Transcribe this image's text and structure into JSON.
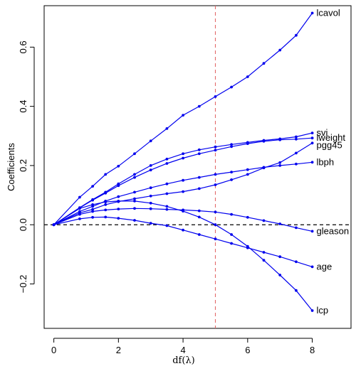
{
  "chart_data": {
    "type": "line",
    "title": "",
    "xlabel": "df(λ)",
    "ylabel": "Coefficients",
    "xlim": [
      -0.3,
      9.2
    ],
    "ylim": [
      -0.35,
      0.74
    ],
    "xticks": [
      0,
      2,
      4,
      6,
      8
    ],
    "xtick_labels": [
      "0",
      "2",
      "4",
      "6",
      "8"
    ],
    "yticks": [
      -0.2,
      0.0,
      0.2,
      0.4,
      0.6
    ],
    "ytick_labels": [
      "−0.2",
      "0.0",
      "0.2",
      "0.4",
      "0.6"
    ],
    "reference_hline": 0,
    "reference_vline": 5,
    "line_color": "#0000ee",
    "hline_color": "#000000",
    "vline_color": "#e06060",
    "grid": false,
    "legend": "labels at line ends (right)",
    "series": [
      {
        "name": "lcavol",
        "points": [
          [
            0,
            0
          ],
          [
            0.8,
            0.093
          ],
          [
            1.2,
            0.13
          ],
          [
            1.6,
            0.17
          ],
          [
            2,
            0.198
          ],
          [
            2.5,
            0.24
          ],
          [
            3,
            0.283
          ],
          [
            3.5,
            0.325
          ],
          [
            4,
            0.37
          ],
          [
            4.5,
            0.4
          ],
          [
            5,
            0.433
          ],
          [
            5.5,
            0.465
          ],
          [
            6,
            0.5
          ],
          [
            6.5,
            0.545
          ],
          [
            7,
            0.59
          ],
          [
            7.5,
            0.64
          ],
          [
            8,
            0.715
          ]
        ]
      },
      {
        "name": "svi",
        "points": [
          [
            0,
            0
          ],
          [
            0.8,
            0.058
          ],
          [
            1.2,
            0.085
          ],
          [
            1.6,
            0.11
          ],
          [
            2,
            0.138
          ],
          [
            2.5,
            0.17
          ],
          [
            3,
            0.2
          ],
          [
            3.5,
            0.222
          ],
          [
            4,
            0.24
          ],
          [
            4.5,
            0.253
          ],
          [
            5,
            0.263
          ],
          [
            5.5,
            0.271
          ],
          [
            6,
            0.278
          ],
          [
            6.5,
            0.285
          ],
          [
            7,
            0.29
          ],
          [
            7.5,
            0.297
          ],
          [
            8,
            0.31
          ]
        ]
      },
      {
        "name": "lweight",
        "points": [
          [
            0,
            0
          ],
          [
            0.8,
            0.057
          ],
          [
            1.2,
            0.083
          ],
          [
            1.6,
            0.107
          ],
          [
            2,
            0.132
          ],
          [
            2.5,
            0.16
          ],
          [
            3,
            0.185
          ],
          [
            3.5,
            0.207
          ],
          [
            4,
            0.225
          ],
          [
            4.5,
            0.24
          ],
          [
            5,
            0.252
          ],
          [
            5.5,
            0.264
          ],
          [
            6,
            0.274
          ],
          [
            6.5,
            0.282
          ],
          [
            7,
            0.287
          ],
          [
            7.5,
            0.289
          ],
          [
            8,
            0.293
          ]
        ]
      },
      {
        "name": "pgg45",
        "points": [
          [
            0,
            0
          ],
          [
            0.8,
            0.04
          ],
          [
            1.2,
            0.052
          ],
          [
            1.6,
            0.068
          ],
          [
            2,
            0.078
          ],
          [
            2.5,
            0.088
          ],
          [
            3,
            0.097
          ],
          [
            3.5,
            0.105
          ],
          [
            4,
            0.112
          ],
          [
            4.5,
            0.122
          ],
          [
            5,
            0.135
          ],
          [
            5.5,
            0.152
          ],
          [
            6,
            0.17
          ],
          [
            6.5,
            0.192
          ],
          [
            7,
            0.21
          ],
          [
            7.5,
            0.242
          ],
          [
            8,
            0.276
          ]
        ]
      },
      {
        "name": "lbph",
        "points": [
          [
            0,
            0
          ],
          [
            0.8,
            0.045
          ],
          [
            1.2,
            0.062
          ],
          [
            1.6,
            0.08
          ],
          [
            2,
            0.095
          ],
          [
            2.5,
            0.11
          ],
          [
            3,
            0.125
          ],
          [
            3.5,
            0.138
          ],
          [
            4,
            0.15
          ],
          [
            4.5,
            0.16
          ],
          [
            5,
            0.17
          ],
          [
            5.5,
            0.178
          ],
          [
            6,
            0.186
          ],
          [
            6.5,
            0.194
          ],
          [
            7,
            0.2
          ],
          [
            7.5,
            0.205
          ],
          [
            8,
            0.211
          ]
        ]
      },
      {
        "name": "gleason",
        "points": [
          [
            0,
            0
          ],
          [
            0.8,
            0.035
          ],
          [
            1.2,
            0.045
          ],
          [
            1.6,
            0.05
          ],
          [
            2,
            0.053
          ],
          [
            2.5,
            0.055
          ],
          [
            3,
            0.054
          ],
          [
            3.5,
            0.052
          ],
          [
            4,
            0.05
          ],
          [
            4.5,
            0.047
          ],
          [
            5,
            0.043
          ],
          [
            5.5,
            0.035
          ],
          [
            6,
            0.025
          ],
          [
            6.5,
            0.014
          ],
          [
            7,
            0.003
          ],
          [
            7.5,
            -0.01
          ],
          [
            8,
            -0.022
          ]
        ]
      },
      {
        "name": "age",
        "points": [
          [
            0,
            0
          ],
          [
            0.8,
            0.02
          ],
          [
            1.2,
            0.025
          ],
          [
            1.6,
            0.026
          ],
          [
            2,
            0.022
          ],
          [
            2.5,
            0.015
          ],
          [
            3,
            0.005
          ],
          [
            3.5,
            -0.003
          ],
          [
            4,
            -0.018
          ],
          [
            4.5,
            -0.033
          ],
          [
            5,
            -0.048
          ],
          [
            5.5,
            -0.063
          ],
          [
            6,
            -0.078
          ],
          [
            6.5,
            -0.093
          ],
          [
            7,
            -0.108
          ],
          [
            7.5,
            -0.125
          ],
          [
            8,
            -0.142
          ]
        ]
      },
      {
        "name": "lcp",
        "points": [
          [
            0,
            0
          ],
          [
            0.8,
            0.055
          ],
          [
            1.2,
            0.068
          ],
          [
            1.6,
            0.077
          ],
          [
            2,
            0.08
          ],
          [
            2.5,
            0.08
          ],
          [
            3,
            0.073
          ],
          [
            3.5,
            0.062
          ],
          [
            4,
            0.046
          ],
          [
            4.5,
            0.026
          ],
          [
            5,
            0
          ],
          [
            5.5,
            -0.033
          ],
          [
            6,
            -0.073
          ],
          [
            6.5,
            -0.12
          ],
          [
            7,
            -0.17
          ],
          [
            7.5,
            -0.222
          ],
          [
            8,
            -0.29
          ]
        ]
      }
    ]
  }
}
